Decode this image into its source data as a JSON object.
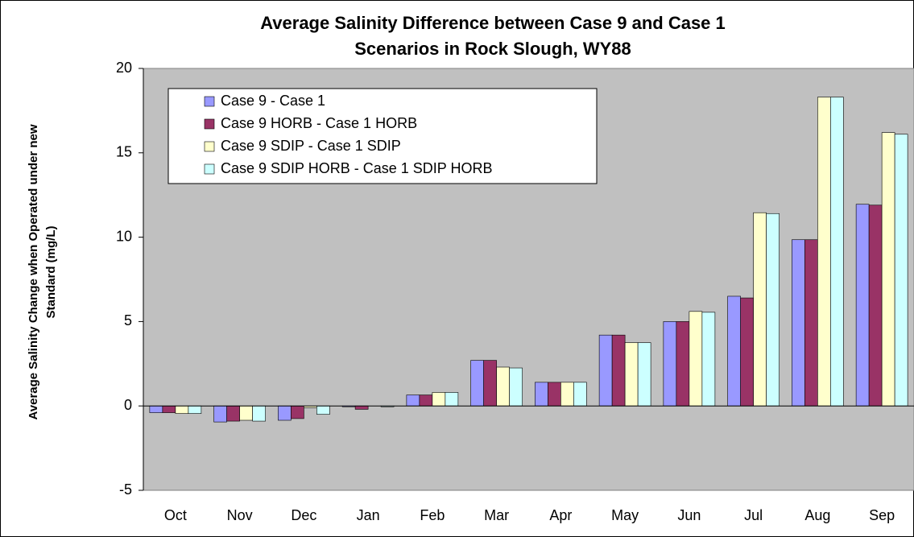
{
  "chart_data": {
    "type": "bar",
    "title": [
      "Average Salinity Difference between Case 9 and Case 1",
      "Scenarios in Rock Slough, WY88"
    ],
    "y_label": [
      "Average Salinity Change when Operated under new",
      "Standard (mg/L)"
    ],
    "categories": [
      "Oct",
      "Nov",
      "Dec",
      "Jan",
      "Feb",
      "Mar",
      "Apr",
      "May",
      "Jun",
      "Jul",
      "Aug",
      "Sep"
    ],
    "series": [
      {
        "name": "Case 9 - Case 1",
        "color": "#9999ff",
        "values": [
          -0.4,
          -0.95,
          -0.85,
          -0.05,
          0.65,
          2.7,
          1.4,
          4.2,
          5.0,
          6.5,
          9.85,
          11.95
        ]
      },
      {
        "name": "Case 9 HORB - Case 1 HORB",
        "color": "#993366",
        "values": [
          -0.4,
          -0.9,
          -0.75,
          -0.2,
          0.65,
          2.7,
          1.4,
          4.2,
          5.0,
          6.4,
          9.85,
          11.9
        ]
      },
      {
        "name": "Case 9 SDIP - Case 1 SDIP",
        "color": "#ffffcc",
        "values": [
          -0.45,
          -0.85,
          -0.1,
          0,
          0.8,
          2.3,
          1.4,
          3.75,
          5.6,
          11.45,
          18.3,
          16.2
        ]
      },
      {
        "name": "Case 9 SDIP HORB - Case 1 SDIP HORB",
        "color": "#ccffff",
        "values": [
          -0.45,
          -0.9,
          -0.5,
          -0.05,
          0.8,
          2.25,
          1.4,
          3.75,
          5.55,
          11.4,
          18.3,
          16.1
        ]
      }
    ],
    "ylim": [
      -5,
      20
    ],
    "yticks": [
      -5,
      0,
      5,
      10,
      15,
      20
    ],
    "plot_background": "#c0c0c0"
  }
}
